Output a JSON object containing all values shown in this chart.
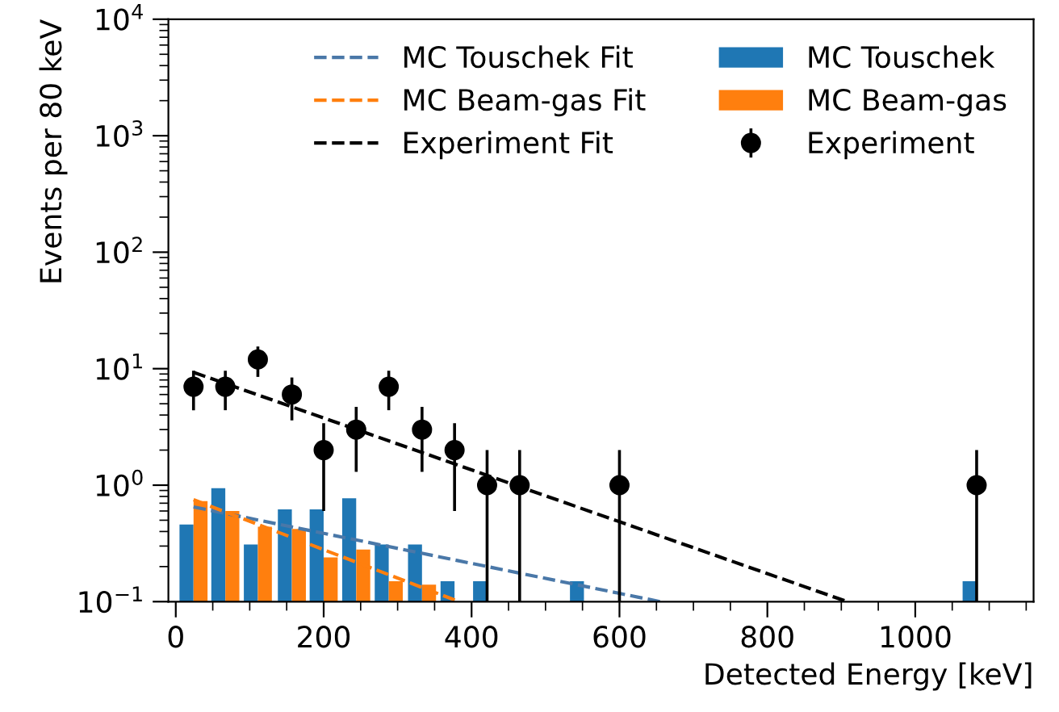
{
  "chart_data": {
    "type": "bar",
    "xlabel": "Detected Energy [keV]",
    "ylabel": "Events per 80 keV",
    "log": "y",
    "xlim": [
      -10,
      1160
    ],
    "xticks": [
      0,
      200,
      400,
      600,
      800,
      1000
    ],
    "ylim": [
      0.1,
      10000
    ],
    "yticks": [
      {
        "value": 0.1,
        "label": "10$^{−1}$"
      },
      {
        "value": 1,
        "label": "10$^{0}$"
      },
      {
        "value": 10,
        "label": "10$^{1}$"
      },
      {
        "value": 100,
        "label": "10$^{2}$"
      },
      {
        "value": 1000,
        "label": "10$^{3}$"
      },
      {
        "value": 10000,
        "label": "10$^{4}$"
      }
    ],
    "grid": false,
    "legend": "top right",
    "series": [
      {
        "name": "MC Touschek Fit",
        "type": "line",
        "line_style": "dashed",
        "color": "#4a78a8",
        "x": [
          24,
          655
        ],
        "values": [
          0.65,
          0.1
        ]
      },
      {
        "name": "MC Beam-gas Fit",
        "type": "line",
        "line_style": "dashed",
        "color": "#ff7f0e",
        "x": [
          24,
          383
        ],
        "values": [
          0.75,
          0.1
        ]
      },
      {
        "name": "Experiment Fit",
        "type": "line",
        "line_style": "dashed",
        "color": "#000000",
        "x": [
          24,
          908
        ],
        "values": [
          9.3,
          0.1
        ]
      },
      {
        "name": "MC Touschek",
        "color": "#1f77b4",
        "x": [
          14.5,
          57.5,
          101.5,
          147.5,
          190.5,
          234.5,
          278.5,
          323.5,
          367.5,
          411.5,
          542.5,
          1073.5
        ],
        "values": [
          0.46,
          0.94,
          0.31,
          0.62,
          0.62,
          0.77,
          0.31,
          0.31,
          0.15,
          0.15,
          0.15,
          0.15
        ]
      },
      {
        "name": "MC Beam-gas",
        "color": "#ff7f0e",
        "x": [
          33.5,
          76.5,
          120.5,
          166.5,
          209.5,
          253.5,
          297.5,
          342.5
        ],
        "values": [
          0.73,
          0.6,
          0.44,
          0.42,
          0.24,
          0.28,
          0.15,
          0.14
        ]
      },
      {
        "name": "Experiment",
        "type": "scatter",
        "marker": "circle",
        "color": "#000000",
        "x": [
          24,
          67,
          111,
          157,
          200,
          244,
          288,
          333,
          377,
          421,
          465,
          600,
          1083
        ],
        "values": [
          7,
          7,
          12,
          6,
          2,
          3,
          7,
          3,
          2,
          1,
          1,
          1,
          1
        ],
        "errors": [
          2.6,
          2.6,
          3.5,
          2.4,
          1.4,
          1.7,
          2.6,
          1.7,
          1.4,
          [
            0.1,
            2
          ],
          [
            0.1,
            2
          ],
          [
            0.1,
            2
          ],
          [
            0.1,
            2
          ]
        ]
      }
    ]
  }
}
